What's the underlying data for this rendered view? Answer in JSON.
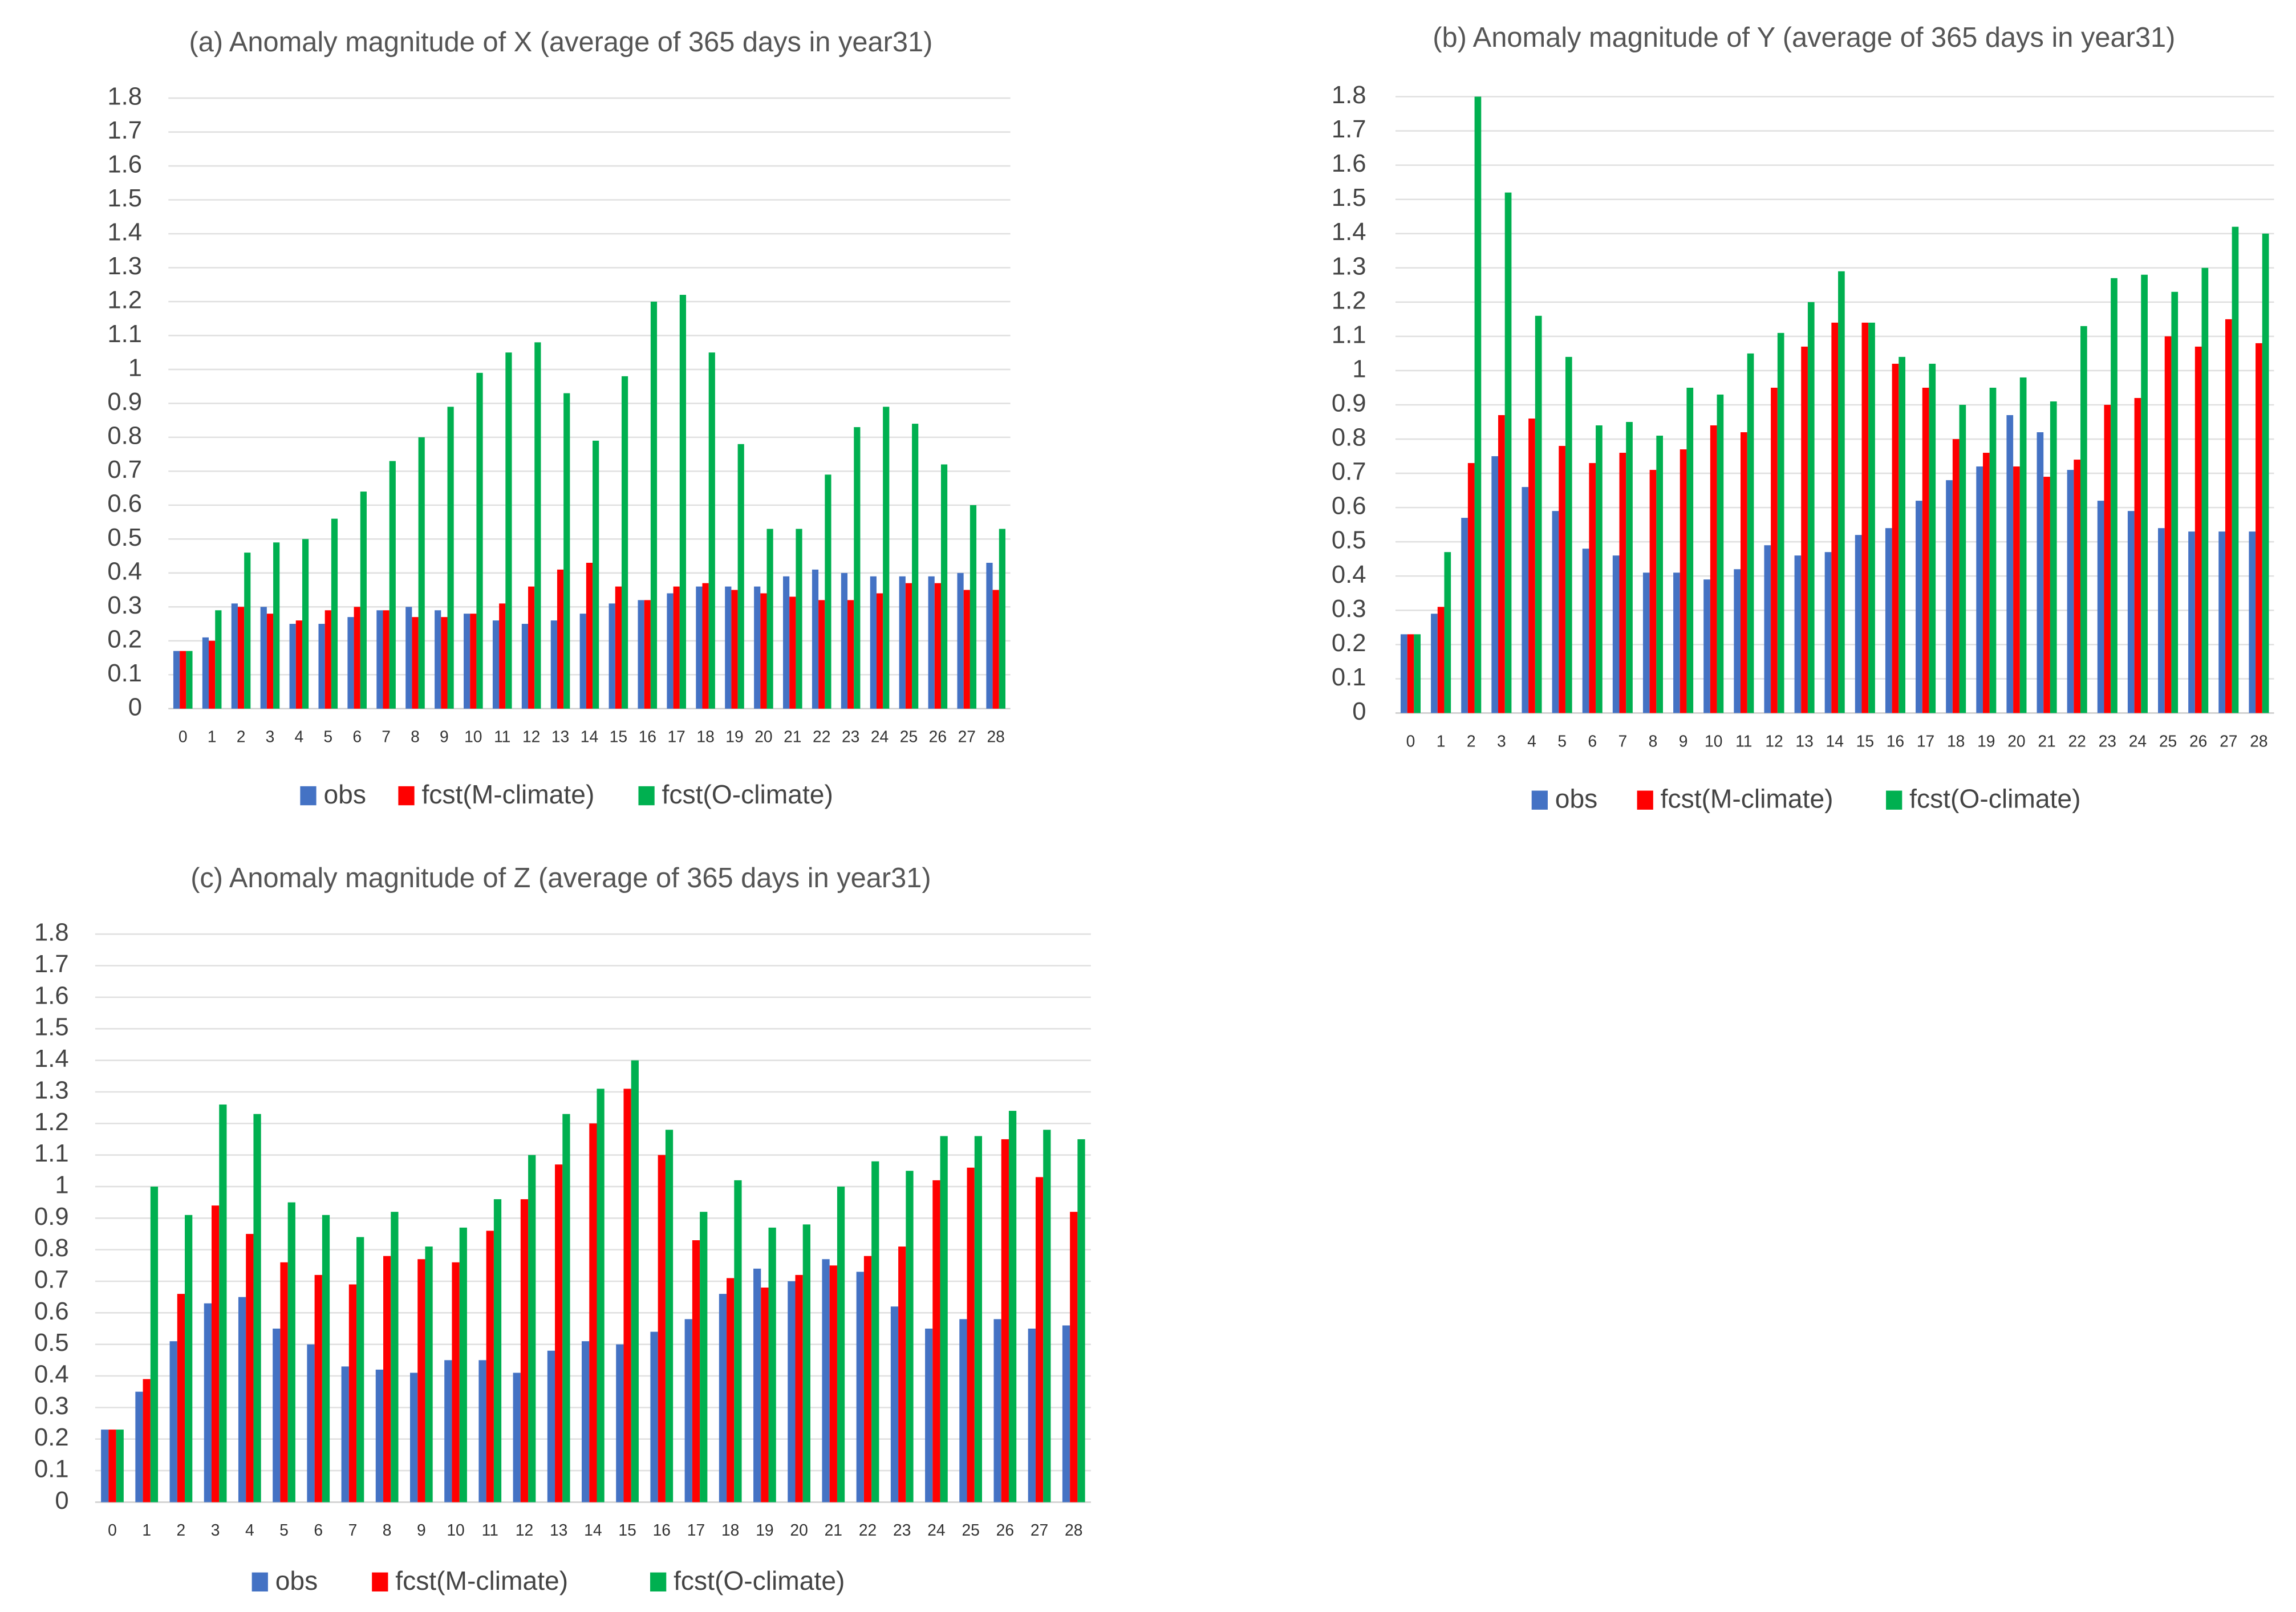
{
  "chart_data": [
    {
      "type": "bar",
      "title": "(a) Anomaly magnitude of X (average of 365 days in year31)",
      "categories": [
        "0",
        "1",
        "2",
        "3",
        "4",
        "5",
        "6",
        "7",
        "8",
        "9",
        "10",
        "11",
        "12",
        "13",
        "14",
        "15",
        "16",
        "17",
        "18",
        "19",
        "20",
        "21",
        "22",
        "23",
        "24",
        "25",
        "26",
        "27",
        "28"
      ],
      "series": [
        {
          "name": "obs",
          "color": "#4472c4",
          "values": [
            0.17,
            0.21,
            0.31,
            0.3,
            0.25,
            0.25,
            0.27,
            0.29,
            0.3,
            0.29,
            0.28,
            0.26,
            0.25,
            0.26,
            0.28,
            0.31,
            0.32,
            0.34,
            0.36,
            0.36,
            0.36,
            0.39,
            0.41,
            0.4,
            0.39,
            0.39,
            0.39,
            0.4,
            0.43
          ]
        },
        {
          "name": "fcst(M-climate)",
          "color": "#ff0000",
          "values": [
            0.17,
            0.2,
            0.3,
            0.28,
            0.26,
            0.29,
            0.3,
            0.29,
            0.27,
            0.27,
            0.28,
            0.31,
            0.36,
            0.41,
            0.43,
            0.36,
            0.32,
            0.36,
            0.37,
            0.35,
            0.34,
            0.33,
            0.32,
            0.32,
            0.34,
            0.37,
            0.37,
            0.35,
            0.35
          ]
        },
        {
          "name": "fcst(O-climate)",
          "color": "#00b050",
          "values": [
            0.17,
            0.29,
            0.46,
            0.49,
            0.5,
            0.56,
            0.64,
            0.73,
            0.8,
            0.89,
            0.99,
            1.05,
            1.08,
            0.93,
            0.79,
            0.98,
            1.2,
            1.22,
            1.05,
            0.78,
            0.53,
            0.53,
            0.69,
            0.83,
            0.89,
            0.84,
            0.72,
            0.6,
            0.53
          ]
        }
      ],
      "ylim": [
        0,
        1.8
      ],
      "yticks": [
        0,
        0.1,
        0.2,
        0.3,
        0.4,
        0.5,
        0.6,
        0.7,
        0.8,
        0.9,
        1,
        1.1,
        1.2,
        1.3,
        1.4,
        1.5,
        1.6,
        1.7,
        1.8
      ],
      "grid": true,
      "legend": "bottom"
    },
    {
      "type": "bar",
      "title": "(b) Anomaly magnitude of Y (average of 365 days in year31)",
      "categories": [
        "0",
        "1",
        "2",
        "3",
        "4",
        "5",
        "6",
        "7",
        "8",
        "9",
        "10",
        "11",
        "12",
        "13",
        "14",
        "15",
        "16",
        "17",
        "18",
        "19",
        "20",
        "21",
        "22",
        "23",
        "24",
        "25",
        "26",
        "27",
        "28"
      ],
      "series": [
        {
          "name": "obs",
          "color": "#4472c4",
          "values": [
            0.23,
            0.29,
            0.57,
            0.75,
            0.66,
            0.59,
            0.48,
            0.46,
            0.41,
            0.41,
            0.39,
            0.42,
            0.49,
            0.46,
            0.47,
            0.52,
            0.54,
            0.62,
            0.68,
            0.72,
            0.87,
            0.82,
            0.71,
            0.62,
            0.59,
            0.54,
            0.53,
            0.53,
            0.53
          ]
        },
        {
          "name": "fcst(M-climate)",
          "color": "#ff0000",
          "values": [
            0.23,
            0.31,
            0.73,
            0.87,
            0.86,
            0.78,
            0.73,
            0.76,
            0.71,
            0.77,
            0.84,
            0.82,
            0.95,
            1.07,
            1.14,
            1.14,
            1.02,
            0.95,
            0.8,
            0.76,
            0.72,
            0.69,
            0.74,
            0.9,
            0.92,
            1.1,
            1.07,
            1.15,
            1.08
          ]
        },
        {
          "name": "fcst(O-climate)",
          "color": "#00b050",
          "values": [
            0.23,
            0.47,
            1.8,
            1.52,
            1.16,
            1.04,
            0.84,
            0.85,
            0.81,
            0.95,
            0.93,
            1.05,
            1.11,
            1.2,
            1.29,
            1.14,
            1.04,
            1.02,
            0.9,
            0.95,
            0.98,
            0.91,
            1.13,
            1.27,
            1.28,
            1.23,
            1.3,
            1.42,
            1.4
          ]
        }
      ],
      "ylim": [
        0,
        1.8
      ],
      "yticks": [
        0,
        0.1,
        0.2,
        0.3,
        0.4,
        0.5,
        0.6,
        0.7,
        0.8,
        0.9,
        1,
        1.1,
        1.2,
        1.3,
        1.4,
        1.5,
        1.6,
        1.7,
        1.8
      ],
      "grid": true,
      "legend": "bottom"
    },
    {
      "type": "bar",
      "title": "(c) Anomaly magnitude of Z (average of 365 days in year31)",
      "categories": [
        "0",
        "1",
        "2",
        "3",
        "4",
        "5",
        "6",
        "7",
        "8",
        "9",
        "10",
        "11",
        "12",
        "13",
        "14",
        "15",
        "16",
        "17",
        "18",
        "19",
        "20",
        "21",
        "22",
        "23",
        "24",
        "25",
        "26",
        "27",
        "28"
      ],
      "series": [
        {
          "name": "obs",
          "color": "#4472c4",
          "values": [
            0.23,
            0.35,
            0.51,
            0.63,
            0.65,
            0.55,
            0.5,
            0.43,
            0.42,
            0.41,
            0.45,
            0.45,
            0.41,
            0.48,
            0.51,
            0.5,
            0.54,
            0.58,
            0.66,
            0.74,
            0.7,
            0.77,
            0.73,
            0.62,
            0.55,
            0.58,
            0.58,
            0.55,
            0.56
          ]
        },
        {
          "name": "fcst(M-climate)",
          "color": "#ff0000",
          "values": [
            0.23,
            0.39,
            0.66,
            0.94,
            0.85,
            0.76,
            0.72,
            0.69,
            0.78,
            0.77,
            0.76,
            0.86,
            0.96,
            1.07,
            1.2,
            1.31,
            1.1,
            0.83,
            0.71,
            0.68,
            0.72,
            0.75,
            0.78,
            0.81,
            1.02,
            1.06,
            1.15,
            1.03,
            0.92
          ]
        },
        {
          "name": "fcst(O-climate)",
          "color": "#00b050",
          "values": [
            0.23,
            1.0,
            0.91,
            1.26,
            1.23,
            0.95,
            0.91,
            0.84,
            0.92,
            0.81,
            0.87,
            0.96,
            1.1,
            1.23,
            1.31,
            1.4,
            1.18,
            0.92,
            1.02,
            0.87,
            0.88,
            1.0,
            1.08,
            1.05,
            1.16,
            1.16,
            1.24,
            1.18,
            1.15
          ]
        }
      ],
      "ylim": [
        0,
        1.8
      ],
      "yticks": [
        0,
        0.1,
        0.2,
        0.3,
        0.4,
        0.5,
        0.6,
        0.7,
        0.8,
        0.9,
        1,
        1.1,
        1.2,
        1.3,
        1.4,
        1.5,
        1.6,
        1.7,
        1.8
      ],
      "grid": true,
      "legend": "bottom"
    }
  ]
}
